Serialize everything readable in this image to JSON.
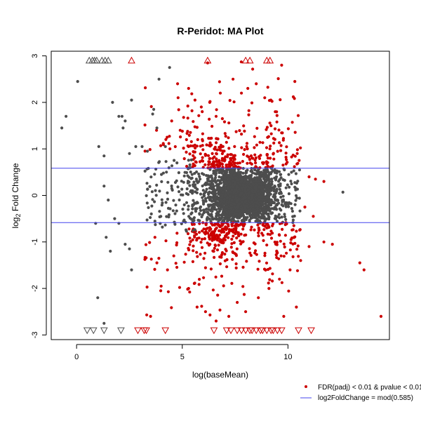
{
  "chart_data": {
    "type": "scatter",
    "title": "R-Peridot: MA Plot",
    "xlabel": "log(baseMean)",
    "ylabel_main": "log",
    "ylabel_sub": "2",
    "ylabel_rest": " Fold Change",
    "xlim": [
      -1.2,
      14.8
    ],
    "ylim": [
      -3.1,
      3.1
    ],
    "xticks": [
      0,
      5,
      10
    ],
    "yticks": [
      -3,
      -2,
      -1,
      0,
      1,
      2,
      3
    ],
    "hlines": [
      0.585,
      -0.585
    ],
    "colors": {
      "significant": "#cc0000",
      "other": "#4d4d4d",
      "threshold": "#4444ee"
    },
    "legend": {
      "position": "bottom-right",
      "items": [
        "FDR(padj) < 0.01 & pvalue < 0.01",
        "log2FoldChange = mod(0.585)"
      ]
    },
    "outliers_top": {
      "grey_x": [
        0.6,
        0.75,
        0.85,
        0.95,
        1.2,
        1.35,
        1.5
      ],
      "red_x": [
        2.6,
        6.2,
        8.0,
        8.2,
        9.0,
        9.15
      ]
    },
    "outliers_bottom": {
      "grey_x": [
        0.5,
        0.8,
        1.3,
        2.1
      ],
      "red_x": [
        2.9,
        3.2,
        3.3,
        4.2,
        6.5,
        7.1,
        7.3,
        7.6,
        7.8,
        8.0,
        8.2,
        8.3,
        8.5,
        8.7,
        8.8,
        9.0,
        9.2,
        9.3,
        9.5,
        9.7,
        10.5,
        11.1
      ]
    },
    "series": [
      {
        "group": "other",
        "points": [
          [
            -0.7,
            1.45
          ],
          [
            -0.5,
            1.7
          ],
          [
            0.05,
            2.45
          ],
          [
            1.05,
            1.05
          ],
          [
            1.3,
            0.85
          ],
          [
            1.7,
            2.0
          ],
          [
            2.0,
            1.7
          ],
          [
            2.15,
            1.7
          ],
          [
            2.3,
            1.6
          ],
          [
            2.2,
            1.45
          ],
          [
            2.5,
            0.9
          ],
          [
            2.6,
            2.05
          ],
          [
            2.8,
            1.05
          ],
          [
            3.1,
            1.05
          ],
          [
            3.35,
            0.95
          ],
          [
            3.65,
            1.85
          ],
          [
            3.6,
            1.75
          ],
          [
            3.9,
            2.5
          ],
          [
            3.8,
            1.45
          ],
          [
            4.2,
            1.05
          ],
          [
            4.4,
            2.75
          ],
          [
            0.9,
            -0.6
          ],
          [
            1.4,
            -0.9
          ],
          [
            1.6,
            -1.2
          ],
          [
            2.0,
            -0.6
          ],
          [
            2.3,
            -1.05
          ],
          [
            2.5,
            -1.15
          ],
          [
            2.6,
            -1.6
          ],
          [
            1.3,
            -2.75
          ],
          [
            1.0,
            -2.2
          ],
          [
            1.3,
            0.2
          ],
          [
            1.5,
            -0.1
          ],
          [
            1.8,
            -0.5
          ],
          [
            12.6,
            0.07
          ]
        ]
      },
      {
        "group": "significant",
        "points": [
          [
            4.8,
            2.1
          ],
          [
            5.3,
            2.3
          ],
          [
            5.6,
            2.05
          ],
          [
            5.9,
            1.9
          ],
          [
            6.3,
            2.0
          ],
          [
            6.6,
            1.7
          ],
          [
            6.8,
            2.2
          ],
          [
            7.4,
            2.5
          ],
          [
            7.8,
            2.2
          ],
          [
            8.1,
            2.3
          ],
          [
            8.5,
            2.4
          ],
          [
            8.9,
            2.1
          ],
          [
            9.4,
            1.8
          ],
          [
            9.7,
            2.8
          ],
          [
            9.2,
            1.5
          ],
          [
            4.5,
            1.6
          ],
          [
            4.9,
            1.4
          ],
          [
            5.2,
            1.2
          ],
          [
            6.2,
            2.85
          ],
          [
            5.3,
            -2.0
          ],
          [
            5.7,
            -2.4
          ],
          [
            6.1,
            -2.5
          ],
          [
            6.6,
            -2.7
          ],
          [
            7.2,
            -2.6
          ],
          [
            7.6,
            -2.3
          ],
          [
            8.0,
            -2.5
          ],
          [
            8.6,
            -2.2
          ],
          [
            9.1,
            -2.0
          ],
          [
            9.6,
            -1.8
          ],
          [
            10.1,
            -1.6
          ],
          [
            10.6,
            -1.4
          ],
          [
            11.0,
            -1.1
          ],
          [
            11.7,
            -1.0
          ],
          [
            12.1,
            -1.05
          ],
          [
            13.4,
            -1.45
          ],
          [
            13.6,
            -1.6
          ],
          [
            14.4,
            -2.6
          ],
          [
            10.4,
            -2.4
          ],
          [
            9.8,
            -2.6
          ],
          [
            3.5,
            -2.6
          ],
          [
            4.0,
            -1.95
          ],
          [
            4.3,
            -1.6
          ],
          [
            4.6,
            -1.3
          ],
          [
            3.8,
            -1.45
          ],
          [
            11.0,
            0.4
          ],
          [
            11.3,
            0.35
          ],
          [
            11.7,
            0.3
          ],
          [
            10.8,
            -0.25
          ],
          [
            11.2,
            -0.45
          ]
        ]
      }
    ]
  }
}
